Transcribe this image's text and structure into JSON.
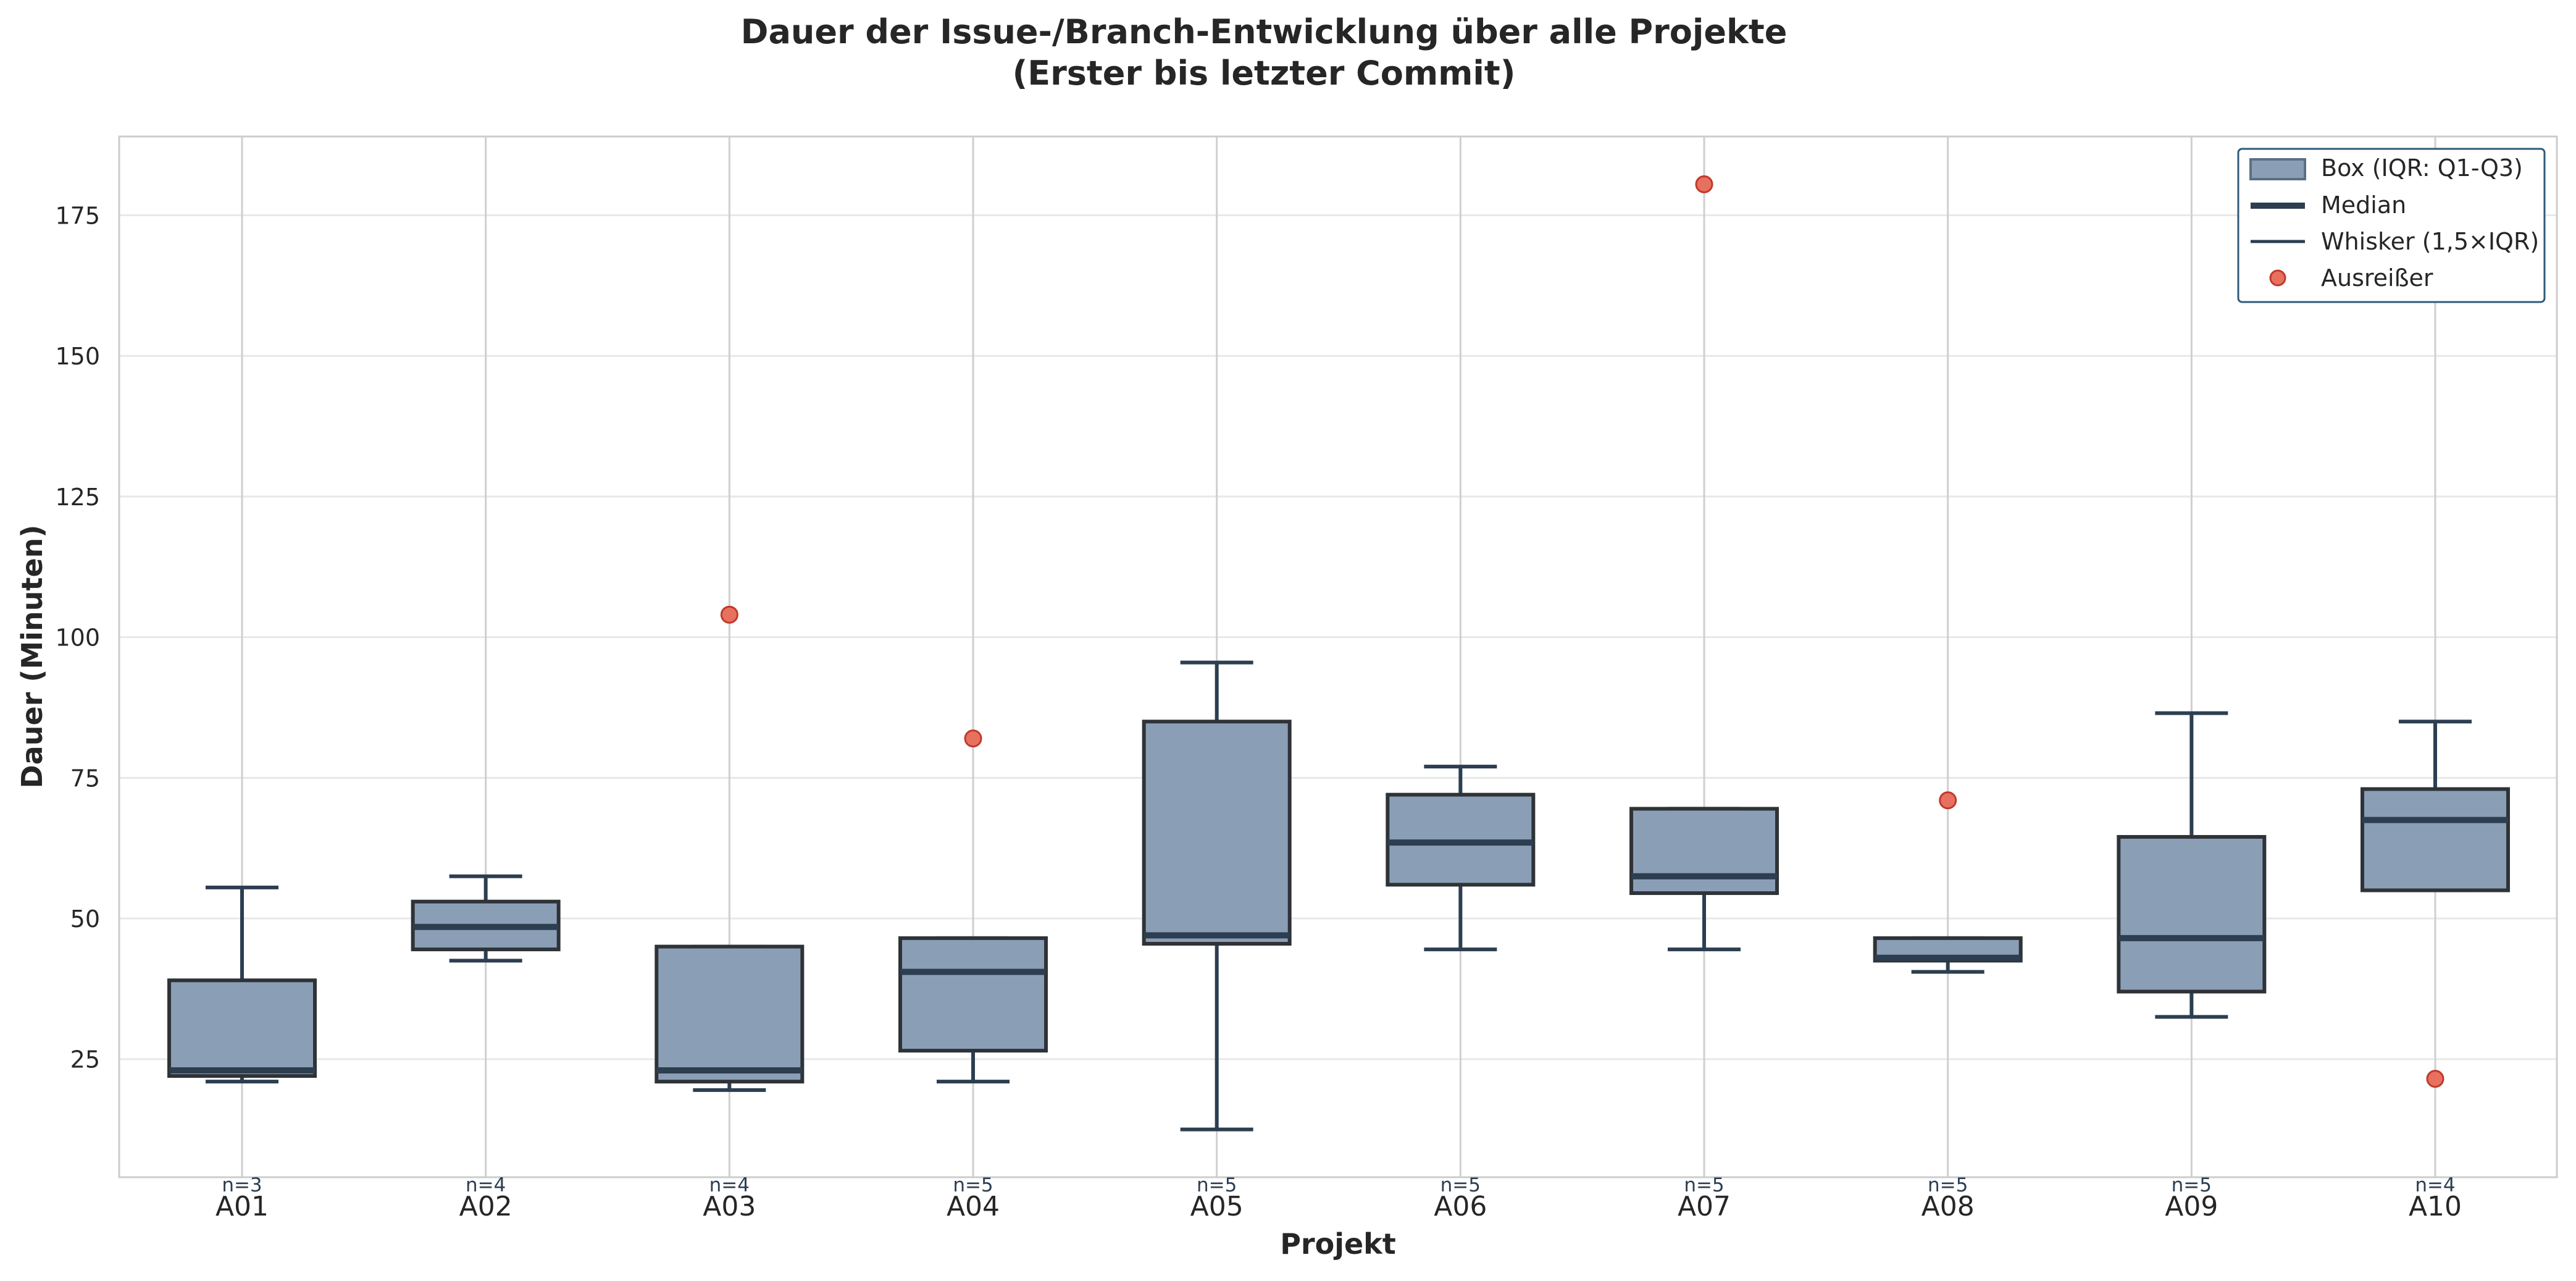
{
  "chart_data": {
    "type": "box",
    "title_lines": [
      "Dauer der Issue-/Branch-Entwicklung über alle Projekte",
      "(Erster bis letzter Commit)"
    ],
    "xlabel": "Projekt",
    "ylabel": "Dauer (Minuten)",
    "ylim": [
      4,
      189
    ],
    "yticks": [
      25,
      50,
      75,
      100,
      125,
      150,
      175
    ],
    "grid": true,
    "legend_position": "top-right",
    "legend": {
      "box": "Box (IQR: Q1-Q3)",
      "median": "Median",
      "whisker": "Whisker (1,5×IQR)",
      "outlier": "Ausreißer"
    },
    "colors": {
      "box_fill": "#8a9fb6",
      "box_edge": "#2f3337",
      "median": "#2c3e50",
      "whisker": "#2c3e50",
      "outlier_fill": "#e8705f",
      "outlier_edge": "#c0392b",
      "grid": "#e8e8e8",
      "legend_edge": "#2f5b7c"
    },
    "categories": [
      "A01",
      "A02",
      "A03",
      "A04",
      "A05",
      "A06",
      "A07",
      "A08",
      "A09",
      "A10"
    ],
    "n_labels": [
      "n=3",
      "n=4",
      "n=4",
      "n=5",
      "n=5",
      "n=5",
      "n=5",
      "n=5",
      "n=5",
      "n=4"
    ],
    "boxes": [
      {
        "whislo": 21,
        "q1": 22,
        "med": 23,
        "q3": 39,
        "whishi": 55.5,
        "outliers": []
      },
      {
        "whislo": 42.5,
        "q1": 44.5,
        "med": 48.5,
        "q3": 53,
        "whishi": 57.5,
        "outliers": []
      },
      {
        "whislo": 19.5,
        "q1": 21,
        "med": 23,
        "q3": 45,
        "whishi": 45,
        "outliers": [
          104
        ]
      },
      {
        "whislo": 21,
        "q1": 26.5,
        "med": 40.5,
        "q3": 46.5,
        "whishi": 46.5,
        "outliers": [
          82
        ]
      },
      {
        "whislo": 12.5,
        "q1": 45.5,
        "med": 47,
        "q3": 85,
        "whishi": 95.5,
        "outliers": []
      },
      {
        "whislo": 44.5,
        "q1": 56,
        "med": 63.5,
        "q3": 72,
        "whishi": 77,
        "outliers": []
      },
      {
        "whislo": 44.5,
        "q1": 54.5,
        "med": 57.5,
        "q3": 69.5,
        "whishi": 69.5,
        "outliers": [
          180.5
        ]
      },
      {
        "whislo": 40.5,
        "q1": 42.5,
        "med": 43,
        "q3": 46.5,
        "whishi": 46.5,
        "outliers": [
          71
        ]
      },
      {
        "whislo": 32.5,
        "q1": 37,
        "med": 46.5,
        "q3": 64.5,
        "whishi": 86.5,
        "outliers": []
      },
      {
        "whislo": 55,
        "q1": 55,
        "med": 67.5,
        "q3": 73,
        "whishi": 85,
        "outliers": [
          21.5
        ]
      }
    ]
  }
}
